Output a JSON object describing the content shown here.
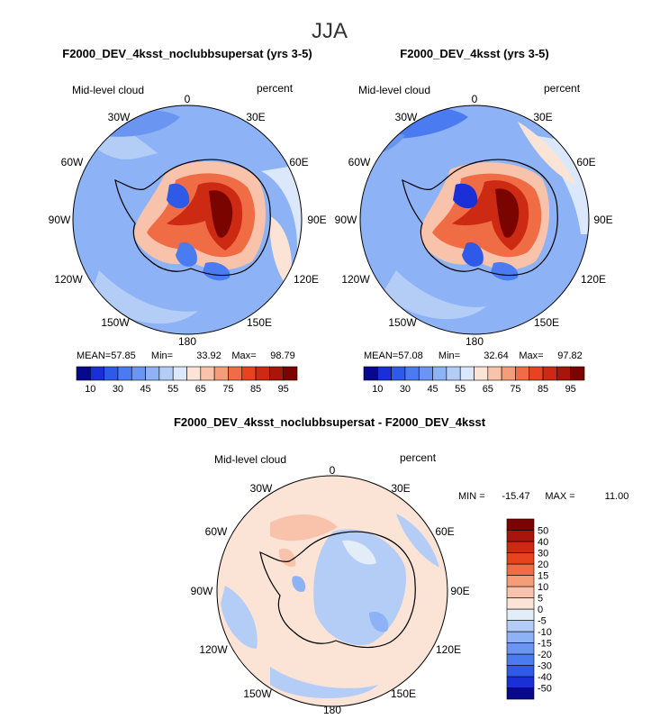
{
  "figure": {
    "title": "JJA"
  },
  "chart_data": [
    {
      "type": "heatmap",
      "projection": "south-polar-stereographic",
      "title": "F2000_DEV_4ksst_noclubbsupersat (yrs 3-5)",
      "variable": "Mid-level cloud",
      "units": "percent",
      "longitude_labels": [
        "0",
        "30E",
        "60E",
        "90E",
        "120E",
        "150E",
        "180",
        "150W",
        "120W",
        "90W",
        "60W",
        "30W"
      ],
      "stats": {
        "mean_label": "MEAN=",
        "mean": "57.85",
        "min_label": "Min=",
        "min": "33.92",
        "max_label": "Max=",
        "max": "98.79"
      },
      "colorbar": {
        "orientation": "horizontal",
        "levels": [
          10,
          20,
          30,
          40,
          45,
          50,
          55,
          60,
          65,
          70,
          75,
          80,
          85,
          90,
          95
        ],
        "tick_labels": [
          "10",
          "30",
          "45",
          "55",
          "65",
          "75",
          "85",
          "95"
        ],
        "colors": [
          "#08088c",
          "#1a2fd6",
          "#2f5ae8",
          "#4a7bf0",
          "#6a96f2",
          "#8db2f5",
          "#b3cdf7",
          "#dbe8fb",
          "#fbe3d6",
          "#f8c3aa",
          "#f59d78",
          "#f06c45",
          "#e8431f",
          "#cc2a12",
          "#a8150a",
          "#7a0500"
        ]
      },
      "field_summary": {
        "antarctic_interior": "85-95",
        "coastal_lows": "35-45",
        "ocean_background": "45-55"
      }
    },
    {
      "type": "heatmap",
      "projection": "south-polar-stereographic",
      "title": "F2000_DEV_4ksst (yrs 3-5)",
      "variable": "Mid-level cloud",
      "units": "percent",
      "longitude_labels": [
        "0",
        "30E",
        "60E",
        "90E",
        "120E",
        "150E",
        "180",
        "150W",
        "120W",
        "90W",
        "60W",
        "30W"
      ],
      "stats": {
        "mean_label": "MEAN=",
        "mean": "57.08",
        "min_label": "Min=",
        "min": "32.64",
        "max_label": "Max=",
        "max": "97.82"
      },
      "colorbar": {
        "orientation": "horizontal",
        "levels": [
          10,
          20,
          30,
          40,
          45,
          50,
          55,
          60,
          65,
          70,
          75,
          80,
          85,
          90,
          95
        ],
        "tick_labels": [
          "10",
          "30",
          "45",
          "55",
          "65",
          "75",
          "85",
          "95"
        ],
        "colors": [
          "#08088c",
          "#1a2fd6",
          "#2f5ae8",
          "#4a7bf0",
          "#6a96f2",
          "#8db2f5",
          "#b3cdf7",
          "#dbe8fb",
          "#fbe3d6",
          "#f8c3aa",
          "#f59d78",
          "#f06c45",
          "#e8431f",
          "#cc2a12",
          "#a8150a",
          "#7a0500"
        ]
      },
      "field_summary": {
        "antarctic_interior": "85-95",
        "coastal_lows": "35-45",
        "ocean_background": "45-55"
      }
    },
    {
      "type": "heatmap",
      "projection": "south-polar-stereographic",
      "title": "F2000_DEV_4ksst_noclubbsupersat - F2000_DEV_4ksst",
      "variable": "Mid-level cloud",
      "units": "percent",
      "longitude_labels": [
        "0",
        "30E",
        "60E",
        "90E",
        "120E",
        "150E",
        "180",
        "150W",
        "120W",
        "90W",
        "60W",
        "30W"
      ],
      "stats": {
        "min_label": "MIN =",
        "min": "-15.47",
        "max_label": "MAX =",
        "max": "11.00"
      },
      "colorbar": {
        "orientation": "vertical",
        "levels": [
          -50,
          -40,
          -30,
          -20,
          -15,
          -10,
          -5,
          0,
          5,
          10,
          15,
          20,
          30,
          40,
          50
        ],
        "tick_labels": [
          "-50",
          "-40",
          "-30",
          "-20",
          "-15",
          "-10",
          "-5",
          "0",
          "5",
          "10",
          "15",
          "20",
          "30",
          "40",
          "50"
        ],
        "colors": [
          "#08088c",
          "#1a2fd6",
          "#2f5ae8",
          "#4a7bf0",
          "#6a96f2",
          "#8db2f5",
          "#b3cdf7",
          "#e3edf7",
          "#fbe3d6",
          "#f8c3aa",
          "#f59d78",
          "#f06c45",
          "#e8431f",
          "#cc2a12",
          "#a8150a",
          "#7a0500"
        ]
      },
      "field_summary": {
        "typical_range": "-5 to 5"
      }
    }
  ]
}
